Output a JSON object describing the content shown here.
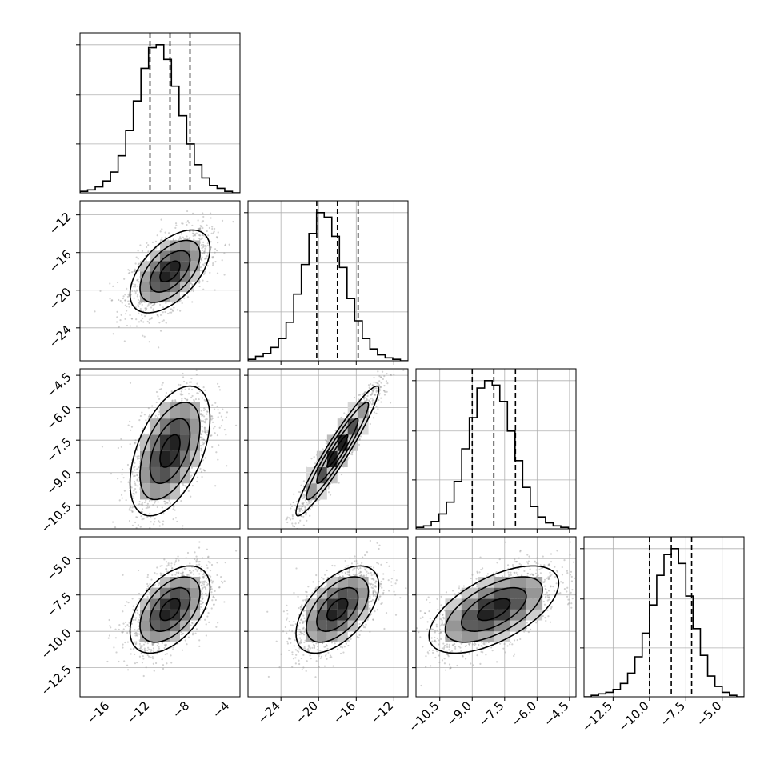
{
  "chart_data": {
    "type": "corner",
    "parameters": [
      {
        "mean": -10.0,
        "sd": 2.0,
        "hist_range": [
          -19.0,
          -3.0
        ],
        "hist_counts": [
          1,
          2,
          4,
          8,
          14,
          25,
          42,
          62,
          84,
          98,
          100,
          90,
          72,
          52,
          33,
          19,
          10,
          5,
          3,
          1,
          0
        ],
        "quantiles": [
          -12.0,
          -10.0,
          -8.0
        ],
        "axis_range": [
          -19.0,
          -3.0
        ],
        "ticks": [
          -16,
          -12,
          -8,
          -4
        ],
        "tick_labels": [
          "−16",
          "−12",
          "−8",
          "−4"
        ]
      },
      {
        "mean": -18.0,
        "sd": 2.2,
        "hist_range": [
          -27.5,
          -10.5
        ],
        "hist_counts": [
          1,
          3,
          5,
          9,
          15,
          26,
          45,
          65,
          86,
          100,
          97,
          84,
          63,
          42,
          27,
          15,
          8,
          4,
          2,
          1,
          0
        ],
        "quantiles": [
          -20.2,
          -18.0,
          -15.8
        ],
        "axis_range": [
          -27.5,
          -10.5
        ],
        "ticks": [
          -24,
          -20,
          -16,
          -12
        ],
        "tick_labels": [
          "−24",
          "−20",
          "−16",
          "−12"
        ]
      },
      {
        "mean": -8.0,
        "sd": 1.5,
        "hist_range": [
          -11.6,
          -4.2
        ],
        "hist_counts": [
          1,
          2,
          5,
          10,
          18,
          32,
          54,
          75,
          95,
          100,
          97,
          86,
          66,
          46,
          28,
          15,
          8,
          4,
          2,
          1,
          0
        ],
        "quantiles": [
          -9.0,
          -8.0,
          -7.0
        ],
        "axis_range": [
          -11.6,
          -4.2
        ],
        "ticks": [
          -10.5,
          -9.0,
          -7.5,
          -6.0,
          -4.5
        ],
        "tick_labels": [
          "−10.5",
          "−9.0",
          "−7.5",
          "−6.0",
          "−4.5"
        ]
      },
      {
        "mean": -8.5,
        "sd": 1.5,
        "hist_range": [
          -14.5,
          -3.5
        ],
        "hist_counts": [
          0,
          1,
          2,
          3,
          5,
          9,
          16,
          27,
          43,
          62,
          82,
          96,
          100,
          90,
          68,
          46,
          28,
          14,
          7,
          3,
          1,
          0
        ],
        "quantiles": [
          -10.0,
          -8.5,
          -7.1
        ],
        "axis_range": [
          -14.5,
          -3.5
        ],
        "ticks": [
          -12.5,
          -10.0,
          -7.5,
          -5.0
        ],
        "tick_labels": [
          "−12.5",
          "−10.0",
          "−7.5",
          "−5.0"
        ]
      }
    ],
    "correlations": {
      "1-0": 0.55,
      "2-0": 0.5,
      "2-1": 0.95,
      "3-0": 0.5,
      "3-1": 0.55,
      "3-2": 0.6
    },
    "grid": true
  }
}
